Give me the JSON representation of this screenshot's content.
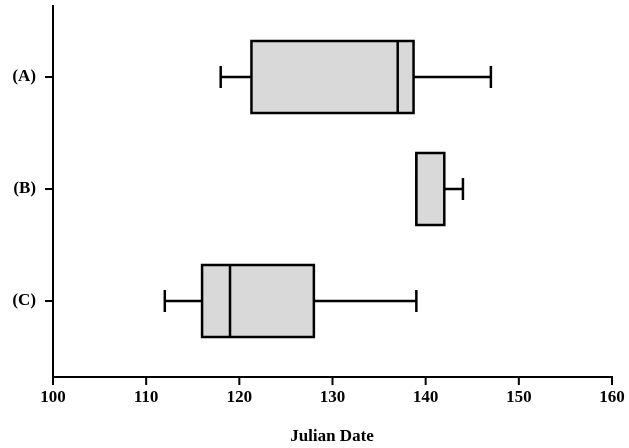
{
  "chart_data": {
    "type": "box",
    "orientation": "horizontal",
    "x_label": "Julian Date",
    "categories": [
      "(A)",
      "(B)",
      "(C)"
    ],
    "boxes": [
      {
        "min": 118,
        "q1": 121.3,
        "median": 137,
        "q3": 138.7,
        "max": 147
      },
      {
        "min": 139,
        "q1": 139,
        "median": 139,
        "q3": 142,
        "max": 144
      },
      {
        "min": 112,
        "q1": 116,
        "median": 119,
        "q3": 128,
        "max": 139
      }
    ],
    "color": "#d9d9d9",
    "xlim": [
      100,
      160
    ],
    "xticks": [
      100,
      110,
      120,
      130,
      140,
      150,
      160
    ],
    "grid": false
  }
}
